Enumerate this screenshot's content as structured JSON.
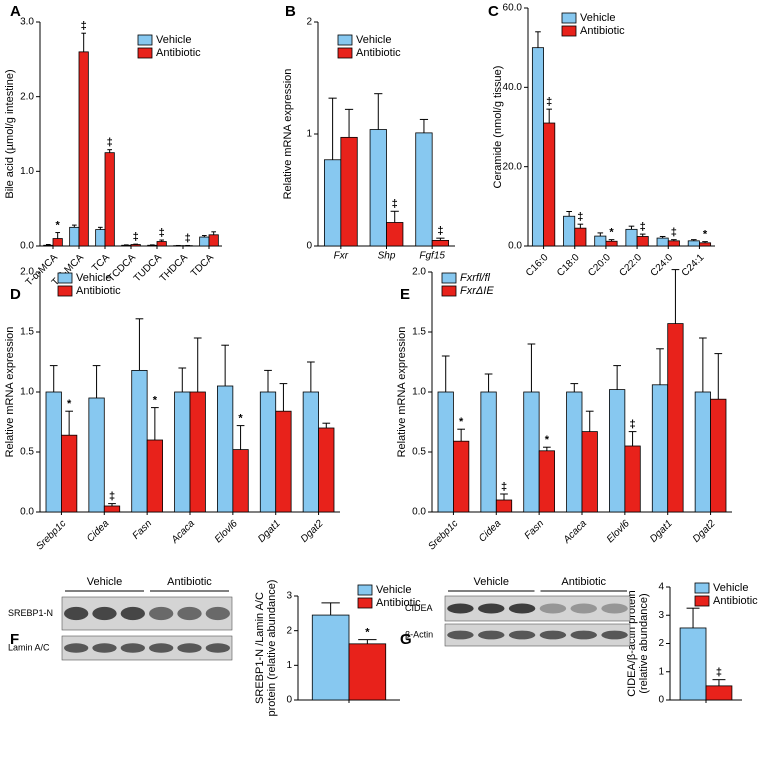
{
  "chart_data": [
    {
      "type": "bar",
      "panel": "A",
      "ylabel": [
        "Bile acid (µmol/g intestine)"
      ],
      "categories": [
        "T-α-MCA",
        "T-β-MCA",
        "TCA",
        "TCDCA",
        "TUDCA",
        "THDCA",
        "TDCA"
      ],
      "series": [
        {
          "name": "Vehicle",
          "color": "#87c8f0",
          "values": [
            0.01,
            0.25,
            0.22,
            0.01,
            0.01,
            0.005,
            0.12
          ],
          "errors": [
            0.01,
            0.03,
            0.03,
            0.005,
            0.005,
            0.002,
            0.02
          ],
          "markers": [
            null,
            null,
            null,
            null,
            null,
            null,
            null
          ]
        },
        {
          "name": "Antibiotic",
          "color": "#e8221b",
          "values": [
            0.1,
            2.6,
            1.25,
            0.02,
            0.06,
            0.005,
            0.15
          ],
          "errors": [
            0.08,
            0.25,
            0.04,
            0.005,
            0.02,
            0.002,
            0.04
          ],
          "markers": [
            "*",
            "‡",
            "‡",
            "‡",
            "‡",
            "‡",
            null
          ]
        }
      ],
      "ylim": [
        0,
        3
      ],
      "yticks": [
        {
          "value": 0,
          "label": "0.0"
        },
        {
          "value": 1,
          "label": "1.0"
        },
        {
          "value": 2,
          "label": "2.0"
        },
        {
          "value": 3,
          "label": "3.0"
        }
      ]
    },
    {
      "type": "bar",
      "panel": "B",
      "ylabel": [
        "Relative mRNA expression"
      ],
      "categories": [
        "Fxr",
        "Shp",
        "Fgf15"
      ],
      "series": [
        {
          "name": "Vehicle",
          "color": "#87c8f0",
          "values": [
            0.77,
            1.04,
            1.01
          ],
          "errors": [
            0.55,
            0.32,
            0.12
          ],
          "markers": [
            null,
            null,
            null
          ]
        },
        {
          "name": "Antibiotic",
          "color": "#e8221b",
          "values": [
            0.97,
            0.21,
            0.05
          ],
          "errors": [
            0.25,
            0.1,
            0.02
          ],
          "markers": [
            null,
            "‡",
            "‡"
          ]
        }
      ],
      "ylim": [
        0,
        2
      ],
      "yticks": [
        0,
        1,
        2
      ]
    },
    {
      "type": "bar",
      "panel": "C",
      "ylabel": [
        "Ceramide (nmol/g tissue)"
      ],
      "categories": [
        "C16:0",
        "C18:0",
        "C20:0",
        "C22:0",
        "C24:0",
        "C24:1"
      ],
      "series": [
        {
          "name": "Vehicle",
          "color": "#87c8f0",
          "values": [
            50,
            7.5,
            2.5,
            4.2,
            2,
            1.3
          ],
          "errors": [
            4,
            1.2,
            0.8,
            0.8,
            0.4,
            0.3
          ],
          "markers": [
            null,
            null,
            null,
            null,
            null,
            null
          ]
        },
        {
          "name": "Antibiotic",
          "color": "#e8221b",
          "values": [
            31,
            4.5,
            1.2,
            2.4,
            1.3,
            0.8
          ],
          "errors": [
            3.5,
            1,
            0.4,
            0.6,
            0.3,
            0.3
          ],
          "markers": [
            "‡",
            "‡",
            "*",
            "‡",
            "‡",
            "*"
          ]
        }
      ],
      "ylim": [
        0,
        60
      ],
      "yticks": [
        {
          "value": 0,
          "label": "0.0"
        },
        {
          "value": 20,
          "label": "20.0"
        },
        {
          "value": 40,
          "label": "40.0"
        },
        {
          "value": 60,
          "label": "60.0"
        }
      ]
    },
    {
      "type": "bar",
      "panel": "D",
      "ylabel": [
        "Relative mRNA expression"
      ],
      "categories": [
        "Srebp1c",
        "Cidea",
        "Fasn",
        "Acaca",
        "Elovl6",
        "Dgat1",
        "Dgat2"
      ],
      "series": [
        {
          "name": "Vehicle",
          "color": "#87c8f0",
          "values": [
            1.0,
            0.95,
            1.18,
            1.0,
            1.05,
            1.0,
            1.0
          ],
          "errors": [
            0.22,
            0.27,
            0.43,
            0.2,
            0.34,
            0.18,
            0.25
          ],
          "markers": [
            null,
            null,
            null,
            null,
            null,
            null,
            null
          ]
        },
        {
          "name": "Antibiotic",
          "color": "#e8221b",
          "values": [
            0.64,
            0.05,
            0.6,
            1.0,
            0.52,
            0.84,
            0.7
          ],
          "errors": [
            0.2,
            0.02,
            0.27,
            0.45,
            0.2,
            0.23,
            0.04
          ],
          "markers": [
            "*",
            "‡",
            "*",
            null,
            "*",
            null,
            null
          ]
        }
      ],
      "ylim": [
        0,
        2
      ],
      "yticks": [
        {
          "value": 0,
          "label": "0.0"
        },
        {
          "value": 0.5,
          "label": "0.5"
        },
        {
          "value": 1,
          "label": "1.0"
        },
        {
          "value": 1.5,
          "label": "1.5"
        },
        {
          "value": 2,
          "label": "2.0"
        }
      ]
    },
    {
      "type": "bar",
      "panel": "E",
      "ylabel": [
        "Relative mRNA expression"
      ],
      "categories": [
        "Srebp1c",
        "Cidea",
        "Fasn",
        "Acaca",
        "Elovl6",
        "Dgat1",
        "Dgat2"
      ],
      "series": [
        {
          "name": "Fxrfl/fl",
          "color": "#87c8f0",
          "values": [
            1.0,
            1.0,
            1.0,
            1.0,
            1.02,
            1.06,
            1.0
          ],
          "errors": [
            0.3,
            0.15,
            0.4,
            0.07,
            0.2,
            0.3,
            0.45
          ],
          "markers": [
            null,
            null,
            null,
            null,
            null,
            null,
            null
          ]
        },
        {
          "name": "FxrΔIE",
          "color": "#e8221b",
          "values": [
            0.59,
            0.1,
            0.51,
            0.67,
            0.55,
            1.57,
            0.94
          ],
          "errors": [
            0.1,
            0.05,
            0.03,
            0.17,
            0.12,
            0.45,
            0.38
          ],
          "markers": [
            "*",
            "‡",
            "*",
            null,
            "‡",
            null,
            null
          ]
        }
      ],
      "ylim": [
        0,
        2
      ],
      "yticks": [
        {
          "value": 0,
          "label": "0.0"
        },
        {
          "value": 0.5,
          "label": "0.5"
        },
        {
          "value": 1,
          "label": "1.0"
        },
        {
          "value": 1.5,
          "label": "1.5"
        },
        {
          "value": 2,
          "label": "2.0"
        }
      ]
    },
    {
      "type": "bar",
      "panel": "F",
      "ylabel": [
        "SREBP1-N /Lamin A/C",
        "protein (relative abundance)"
      ],
      "categories": [
        null
      ],
      "series": [
        {
          "name": "Vehicle",
          "color": "#87c8f0",
          "values": [
            2.45
          ],
          "errors": [
            0.35
          ],
          "markers": [
            null
          ]
        },
        {
          "name": "Antibiotic",
          "color": "#e8221b",
          "values": [
            1.62
          ],
          "errors": [
            0.12
          ],
          "markers": [
            "*"
          ]
        }
      ],
      "ylim": [
        0,
        3
      ],
      "yticks": [
        0,
        1,
        2,
        3
      ]
    },
    {
      "type": "bar",
      "panel": "G",
      "ylabel": [
        "CIDEA/β-actin protein",
        "(relative abundance)"
      ],
      "categories": [
        null
      ],
      "series": [
        {
          "name": "Vehicle",
          "color": "#87c8f0",
          "values": [
            2.55
          ],
          "errors": [
            0.7
          ],
          "markers": [
            null
          ]
        },
        {
          "name": "Antibiotic",
          "color": "#e8221b",
          "values": [
            0.5
          ],
          "errors": [
            0.22
          ],
          "markers": [
            "‡"
          ]
        }
      ],
      "ylim": [
        0,
        4
      ],
      "yticks": [
        0,
        1,
        2,
        3,
        4
      ]
    }
  ],
  "blots": [
    {
      "groups": [
        "Vehicle",
        "Antibiotic"
      ],
      "rows": [
        "SREBP1-N",
        "Lamin A/C"
      ]
    },
    {
      "groups": [
        "Vehicle",
        "Antibiotic"
      ],
      "rows": [
        "CIDEA",
        "β-Actin"
      ]
    }
  ]
}
